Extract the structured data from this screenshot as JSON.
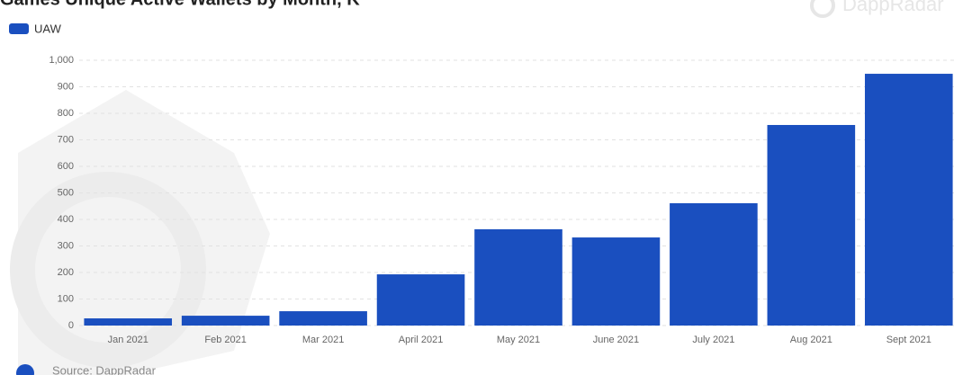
{
  "chart_data": {
    "type": "bar",
    "title": "Games Unique Active Wallets by Month, K",
    "watermark": "DappRadar",
    "source": "Source: DappRadar",
    "categories": [
      "Jan 2021",
      "Feb 2021",
      "Mar 2021",
      "April 2021",
      "May 2021",
      "June 2021",
      "July 2021",
      "Aug 2021",
      "Sept 2021"
    ],
    "series": [
      {
        "name": "UAW",
        "color": "#1a4fbf",
        "values": [
          27,
          37,
          54,
          193,
          363,
          332,
          461,
          756,
          949
        ]
      }
    ],
    "ylim": [
      0,
      1000
    ],
    "yticks": [
      0,
      100,
      200,
      300,
      400,
      500,
      600,
      700,
      800,
      900,
      {
        "value": 1000,
        "label": "1,000"
      }
    ],
    "grid": true
  }
}
